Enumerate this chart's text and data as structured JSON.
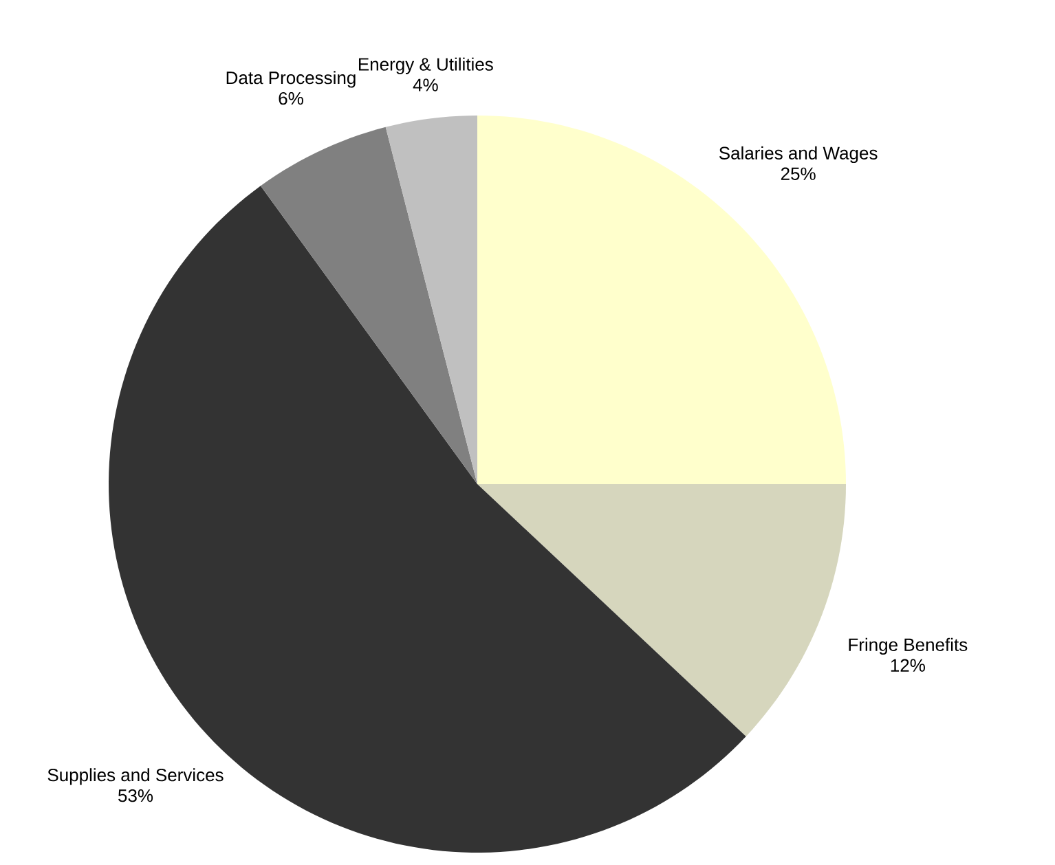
{
  "chart_data": {
    "type": "pie",
    "categories": [
      "Salaries and Wages",
      "Fringe Benefits",
      "Supplies and Services",
      "Data Processing",
      "Energy & Utilities"
    ],
    "values": [
      25,
      12,
      53,
      6,
      4
    ],
    "value_labels": [
      "25%",
      "12%",
      "53%",
      "6%",
      "4%"
    ],
    "colors": [
      "#ffffcc",
      "#d6d6bd",
      "#333333",
      "#808080",
      "#c0c0c0"
    ]
  }
}
